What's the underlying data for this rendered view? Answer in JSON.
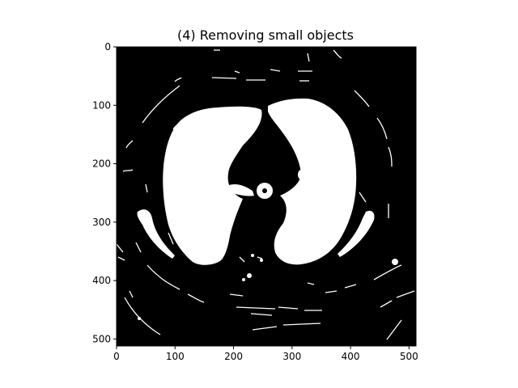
{
  "chart_data": {
    "type": "heatmap",
    "title": "(4) Removing small objects",
    "xlabel": "",
    "ylabel": "",
    "image_size": [
      512,
      512
    ],
    "colormap": "binary (white = segmented lung mask, black = background)",
    "xlim": [
      0,
      512
    ],
    "ylim": [
      512,
      0
    ],
    "x_ticks": [
      0,
      100,
      200,
      300,
      400,
      500
    ],
    "y_ticks": [
      0,
      100,
      200,
      300,
      400,
      500
    ],
    "grid": false,
    "regions": [
      {
        "name": "left lung (image left)",
        "value": 1
      },
      {
        "name": "right lung (image right)",
        "value": 1
      },
      {
        "name": "central airway/vessel structures",
        "value": 1
      },
      {
        "name": "body outline fragments",
        "value": 1
      },
      {
        "name": "background",
        "value": 0
      }
    ]
  }
}
